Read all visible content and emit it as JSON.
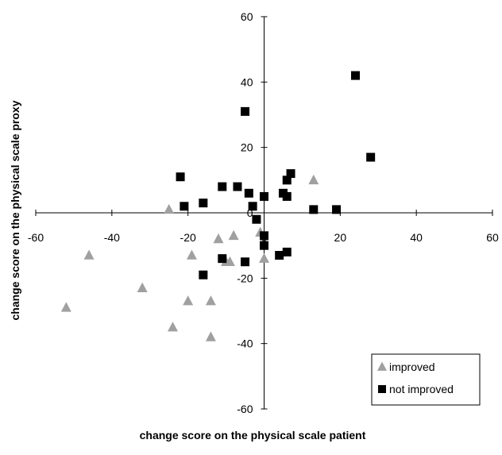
{
  "chart_data": {
    "type": "scatter",
    "title": "",
    "xlabel": "change score on the physical scale patient",
    "ylabel": "change score on the physical scale proxy",
    "xlim": [
      -60,
      60
    ],
    "ylim": [
      -60,
      60
    ],
    "xticks": [
      "-60",
      "-40",
      "-20",
      "0",
      "20",
      "40",
      "60"
    ],
    "yticks": [
      "60",
      "40",
      "20",
      "0",
      "-20",
      "-40",
      "-60"
    ],
    "grid": false,
    "legend_position": "bottom-right",
    "series": [
      {
        "name": "improved",
        "marker": "triangle",
        "color": "#a0a0a0",
        "points": [
          [
            -52,
            -29
          ],
          [
            -46,
            -13
          ],
          [
            -32,
            -23
          ],
          [
            -25,
            1
          ],
          [
            -24,
            -35
          ],
          [
            -20,
            -27
          ],
          [
            -19,
            -13
          ],
          [
            -14,
            -27
          ],
          [
            -14,
            -38
          ],
          [
            -12,
            -8
          ],
          [
            -10,
            -15
          ],
          [
            -9,
            -15
          ],
          [
            -8,
            -7
          ],
          [
            -1,
            -6
          ],
          [
            0,
            -14
          ],
          [
            13,
            10
          ]
        ]
      },
      {
        "name": "not improved",
        "marker": "square",
        "color": "#000000",
        "points": [
          [
            -22,
            11
          ],
          [
            -21,
            2
          ],
          [
            -16,
            3
          ],
          [
            -16,
            -19
          ],
          [
            -11,
            8
          ],
          [
            -11,
            -14
          ],
          [
            -7,
            8
          ],
          [
            -5,
            31
          ],
          [
            -5,
            -15
          ],
          [
            -4,
            6
          ],
          [
            -3,
            2
          ],
          [
            -2,
            -2
          ],
          [
            0,
            5
          ],
          [
            0,
            -7
          ],
          [
            0,
            -10
          ],
          [
            4,
            -13
          ],
          [
            5,
            6
          ],
          [
            6,
            10
          ],
          [
            6,
            5
          ],
          [
            6,
            -12
          ],
          [
            7,
            12
          ],
          [
            13,
            1
          ],
          [
            19,
            1
          ],
          [
            24,
            42
          ],
          [
            28,
            17
          ]
        ]
      }
    ]
  }
}
